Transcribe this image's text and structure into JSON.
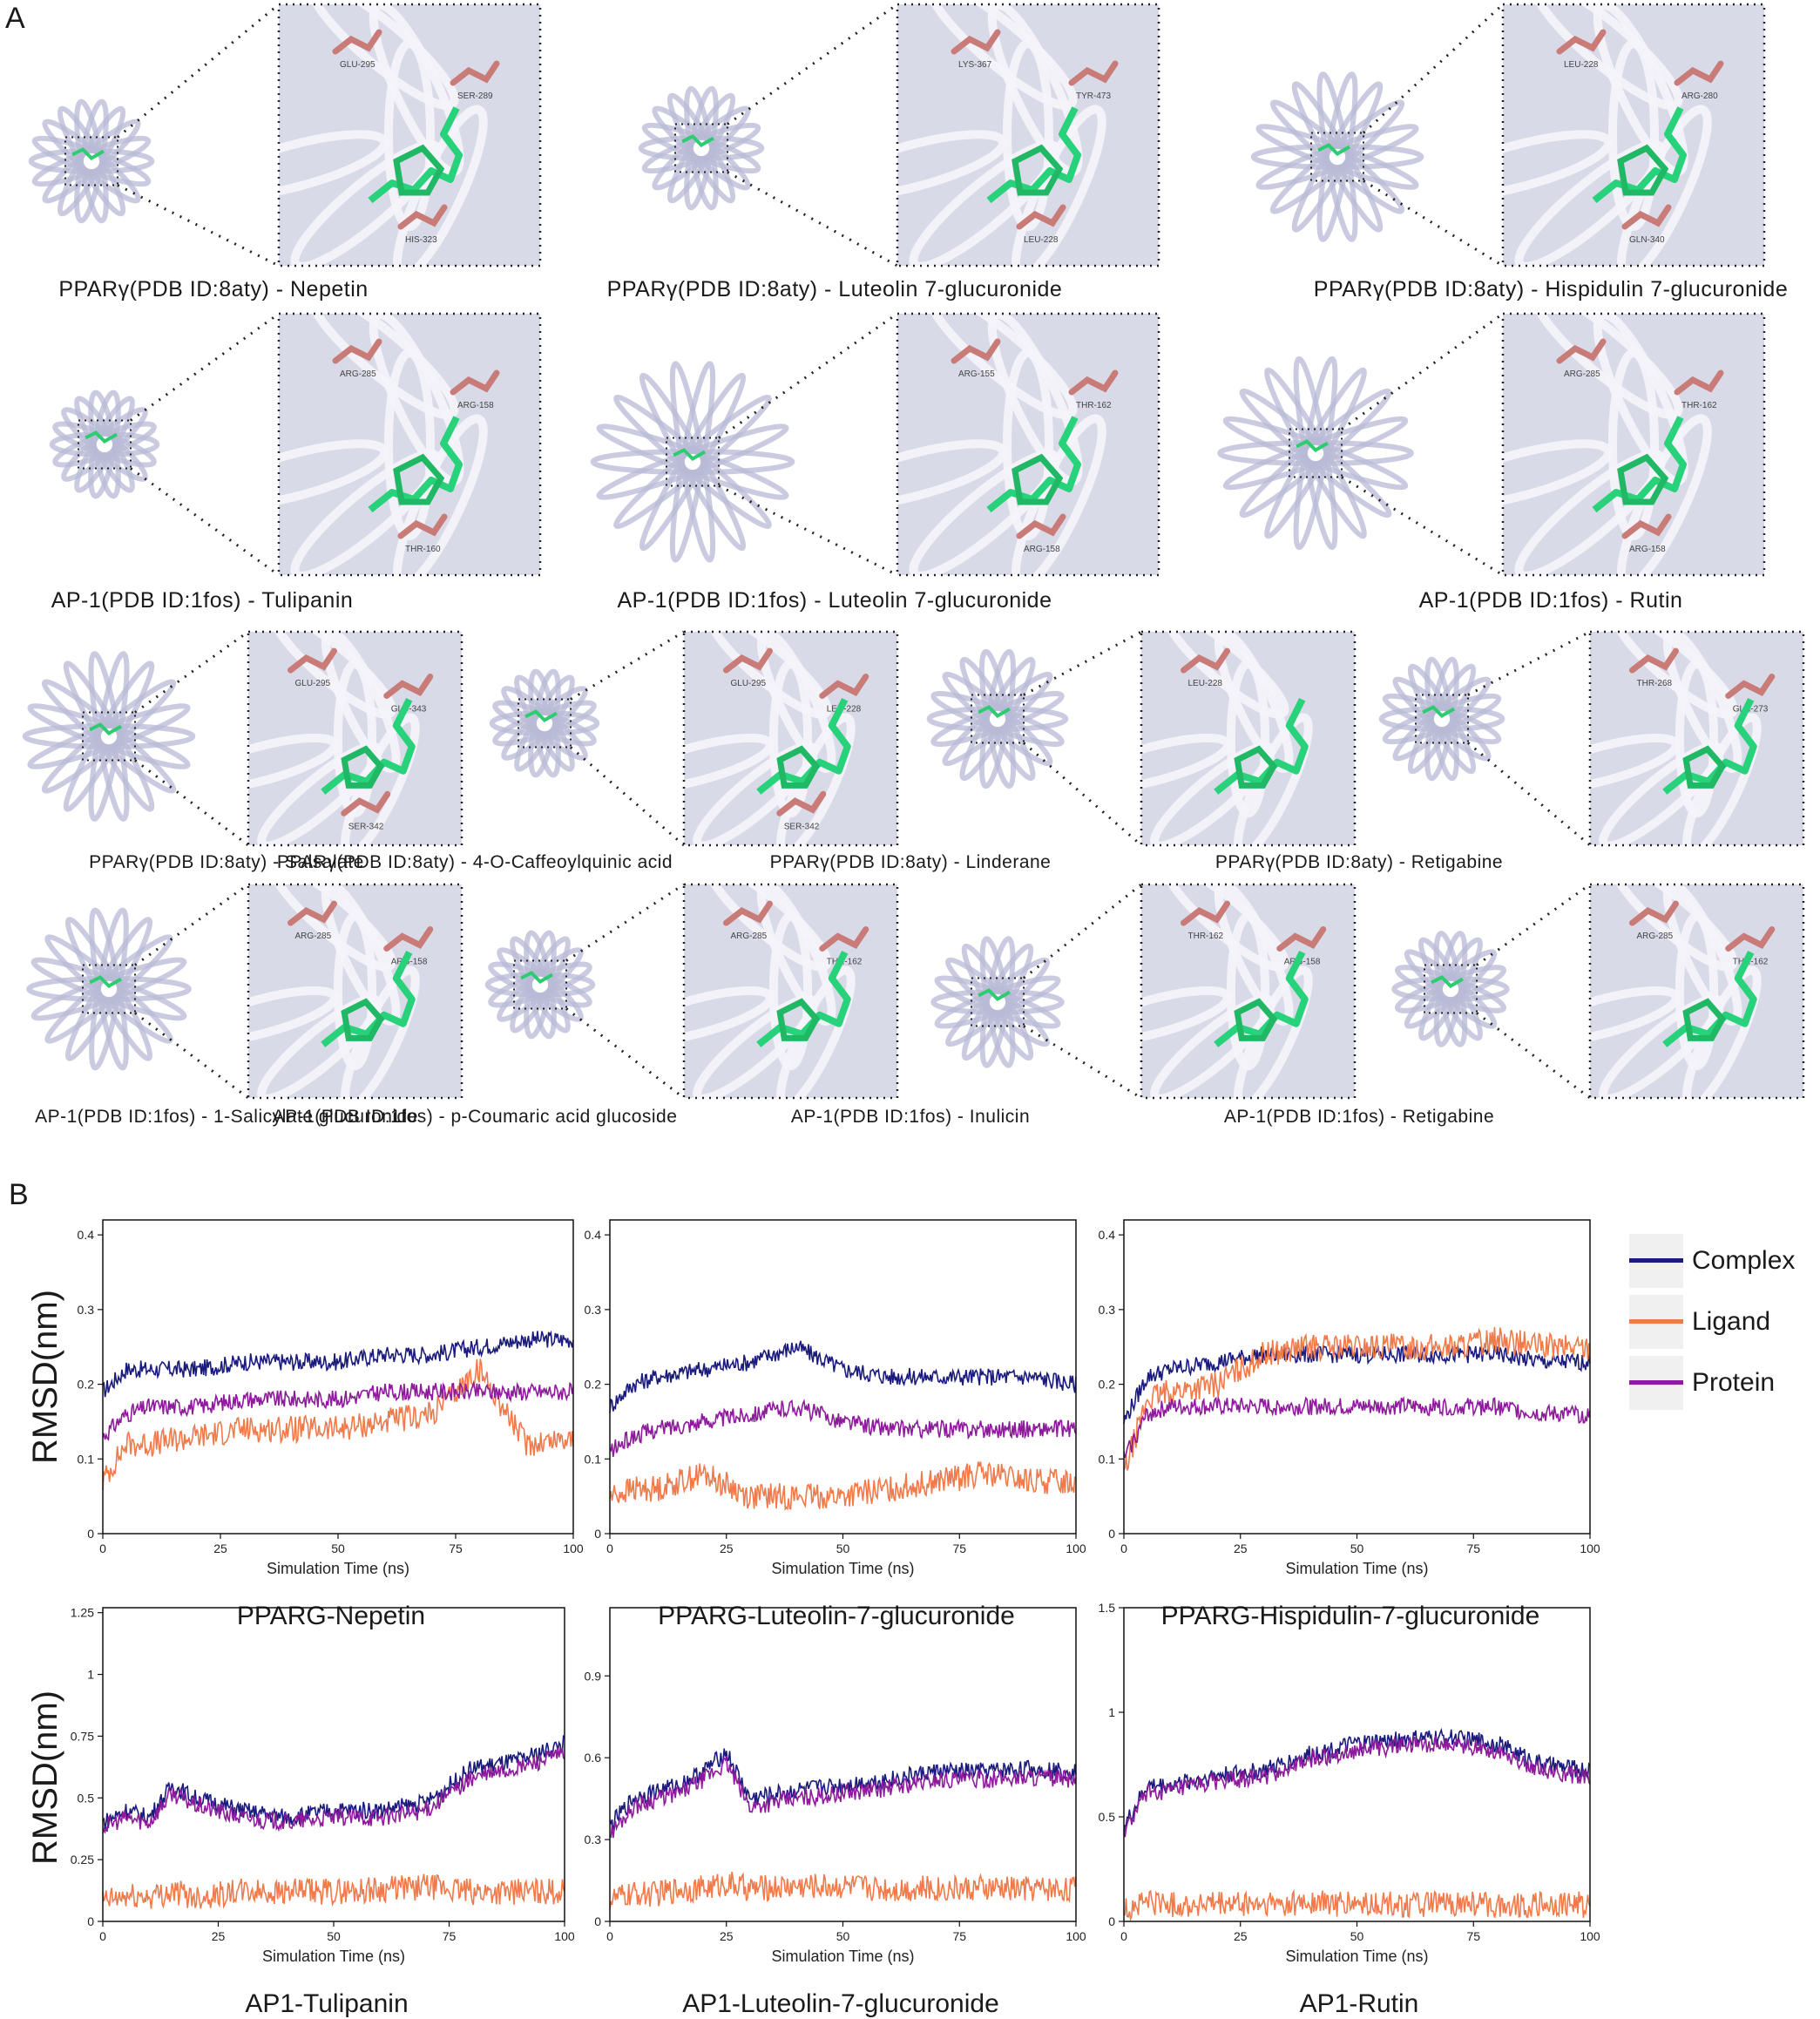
{
  "panelA": {
    "letter": "A",
    "rows": [
      {
        "cells": [
          {
            "caption": "PPARγ(PDB ID:8aty) - Nepetin",
            "residues": [
              "GLU-295",
              "SER-289",
              "HIS-323"
            ]
          },
          {
            "caption": "PPARγ(PDB ID:8aty) - Luteolin 7-glucuronide",
            "residues": [
              "LYS-367",
              "TYR-473",
              "LEU-228"
            ]
          },
          {
            "caption": "PPARγ(PDB ID:8aty) - Hispidulin 7-glucuronide",
            "residues": [
              "LEU-228",
              "ARG-280",
              "GLN-340"
            ]
          }
        ]
      },
      {
        "cells": [
          {
            "caption": "AP-1(PDB ID:1fos) - Tulipanin",
            "residues": [
              "ARG-285",
              "ARG-158",
              "THR-160"
            ]
          },
          {
            "caption": "AP-1(PDB ID:1fos) - Luteolin 7-glucuronide",
            "residues": [
              "ARG-155",
              "THR-162",
              "ARG-158"
            ]
          },
          {
            "caption": "AP-1(PDB ID:1fos) - Rutin",
            "residues": [
              "ARG-285",
              "THR-162",
              "ARG-158"
            ]
          }
        ]
      },
      {
        "cells": [
          {
            "caption": "PPARγ(PDB ID:8aty) - Salsalate",
            "residues": [
              "GLU-295",
              "GLU-343",
              "SER-342"
            ]
          },
          {
            "caption": "PPARγ(PDB ID:8aty) - 4-O-Caffeoylquinic acid",
            "residues": [
              "GLU-295",
              "LEU-228",
              "SER-342"
            ]
          },
          {
            "caption": "PPARγ(PDB ID:8aty) - Linderane",
            "residues": [
              "LEU-228"
            ]
          },
          {
            "caption": "PPARγ(PDB ID:8aty) - Retigabine",
            "residues": [
              "THR-268",
              "GLN-273"
            ]
          }
        ]
      },
      {
        "cells": [
          {
            "caption": "AP-1(PDB ID:1fos) - 1-Salicylate glucuronide",
            "residues": [
              "ARG-285",
              "ARG-158"
            ]
          },
          {
            "caption": "AP-1(PDB ID:1fos) - p-Coumaric acid glucoside",
            "residues": [
              "ARG-285",
              "THR-162"
            ]
          },
          {
            "caption": "AP-1(PDB ID:1fos) - Inulicin",
            "residues": [
              "THR-162",
              "ARG-158"
            ]
          },
          {
            "caption": "AP-1(PDB ID:1fos) - Retigabine",
            "residues": [
              "ARG-285",
              "THR-162"
            ]
          }
        ]
      }
    ]
  },
  "panelB": {
    "letter": "B",
    "ylabel": "RMSD(nm)",
    "legend": [
      {
        "name": "Complex",
        "color": "#1b1b7e"
      },
      {
        "name": "Ligand",
        "color": "#f07a4a"
      },
      {
        "name": "Protein",
        "color": "#8e1a9c"
      }
    ]
  },
  "chart_data": [
    {
      "type": "line",
      "title": "PPARG-Nepetin",
      "xlabel": "Simulation Time (ns)",
      "ylabel": "RMSD(nm)",
      "xlim": [
        0,
        100
      ],
      "ylim": [
        0,
        0.42
      ],
      "xticks": [
        0,
        25,
        50,
        75,
        100
      ],
      "yticks": [
        0,
        0.1,
        0.2,
        0.3,
        0.4
      ],
      "x": [
        0,
        5,
        10,
        20,
        30,
        40,
        50,
        60,
        70,
        80,
        90,
        100
      ],
      "series": [
        {
          "name": "Complex",
          "values": [
            0.19,
            0.22,
            0.22,
            0.22,
            0.23,
            0.23,
            0.23,
            0.24,
            0.24,
            0.25,
            0.26,
            0.26
          ]
        },
        {
          "name": "Ligand",
          "values": [
            0.07,
            0.12,
            0.12,
            0.13,
            0.14,
            0.14,
            0.14,
            0.15,
            0.16,
            0.22,
            0.12,
            0.13
          ]
        },
        {
          "name": "Protein",
          "values": [
            0.13,
            0.16,
            0.17,
            0.17,
            0.18,
            0.18,
            0.18,
            0.19,
            0.19,
            0.19,
            0.19,
            0.19
          ]
        }
      ]
    },
    {
      "type": "line",
      "title": "PPARG-Luteolin-7-glucuronide",
      "xlabel": "Simulation Time (ns)",
      "ylabel": "RMSD(nm)",
      "xlim": [
        0,
        100
      ],
      "ylim": [
        0,
        0.42
      ],
      "xticks": [
        0,
        25,
        50,
        75,
        100
      ],
      "yticks": [
        0,
        0.1,
        0.2,
        0.3,
        0.4
      ],
      "x": [
        0,
        5,
        10,
        20,
        30,
        40,
        50,
        60,
        70,
        80,
        90,
        100
      ],
      "series": [
        {
          "name": "Complex",
          "values": [
            0.17,
            0.2,
            0.21,
            0.22,
            0.23,
            0.25,
            0.22,
            0.21,
            0.21,
            0.21,
            0.21,
            0.2
          ]
        },
        {
          "name": "Ligand",
          "values": [
            0.05,
            0.06,
            0.06,
            0.08,
            0.05,
            0.05,
            0.05,
            0.06,
            0.07,
            0.08,
            0.07,
            0.07
          ]
        },
        {
          "name": "Protein",
          "values": [
            0.11,
            0.13,
            0.14,
            0.15,
            0.16,
            0.17,
            0.15,
            0.14,
            0.14,
            0.14,
            0.14,
            0.14
          ]
        }
      ]
    },
    {
      "type": "line",
      "title": "PPARG-Hispidulin-7-glucuronide",
      "xlabel": "Simulation Time (ns)",
      "ylabel": "RMSD(nm)",
      "xlim": [
        0,
        100
      ],
      "ylim": [
        0,
        0.42
      ],
      "xticks": [
        0,
        25,
        50,
        75,
        100
      ],
      "yticks": [
        0,
        0.1,
        0.2,
        0.3,
        0.4
      ],
      "x": [
        0,
        5,
        10,
        20,
        30,
        40,
        50,
        60,
        70,
        80,
        90,
        100
      ],
      "series": [
        {
          "name": "Complex",
          "values": [
            0.15,
            0.21,
            0.22,
            0.23,
            0.24,
            0.24,
            0.24,
            0.24,
            0.24,
            0.24,
            0.23,
            0.23
          ]
        },
        {
          "name": "Ligand",
          "values": [
            0.08,
            0.18,
            0.19,
            0.2,
            0.24,
            0.25,
            0.25,
            0.25,
            0.25,
            0.26,
            0.25,
            0.25
          ]
        },
        {
          "name": "Protein",
          "values": [
            0.1,
            0.16,
            0.17,
            0.17,
            0.17,
            0.17,
            0.17,
            0.17,
            0.17,
            0.17,
            0.16,
            0.16
          ]
        }
      ]
    },
    {
      "type": "line",
      "title": "AP1-Tulipanin",
      "xlabel": "Simulation Time (ns)",
      "ylabel": "RMSD(nm)",
      "xlim": [
        0,
        100
      ],
      "ylim": [
        0,
        1.27
      ],
      "xticks": [
        0,
        25,
        50,
        75,
        100
      ],
      "yticks": [
        0,
        0.25,
        0.5,
        0.75,
        1,
        1.25
      ],
      "x": [
        0,
        5,
        10,
        15,
        20,
        30,
        40,
        50,
        60,
        70,
        80,
        90,
        100
      ],
      "series": [
        {
          "name": "Complex",
          "values": [
            0.4,
            0.45,
            0.42,
            0.55,
            0.5,
            0.45,
            0.42,
            0.45,
            0.45,
            0.48,
            0.62,
            0.65,
            0.72
          ]
        },
        {
          "name": "Ligand",
          "values": [
            0.08,
            0.1,
            0.1,
            0.12,
            0.1,
            0.12,
            0.12,
            0.12,
            0.13,
            0.14,
            0.12,
            0.12,
            0.12
          ]
        },
        {
          "name": "Protein",
          "values": [
            0.38,
            0.42,
            0.4,
            0.52,
            0.47,
            0.42,
            0.4,
            0.42,
            0.42,
            0.45,
            0.58,
            0.62,
            0.68
          ]
        }
      ]
    },
    {
      "type": "line",
      "title": "AP1-Luteolin-7-glucuronide",
      "xlabel": "Simulation Time (ns)",
      "ylabel": "RMSD(nm)",
      "xlim": [
        0,
        100
      ],
      "ylim": [
        0,
        1.15
      ],
      "xticks": [
        0,
        25,
        50,
        75,
        100
      ],
      "yticks": [
        0,
        0.3,
        0.6,
        0.9
      ],
      "x": [
        0,
        5,
        10,
        15,
        20,
        25,
        30,
        40,
        50,
        60,
        70,
        80,
        90,
        100
      ],
      "series": [
        {
          "name": "Complex",
          "values": [
            0.35,
            0.45,
            0.48,
            0.5,
            0.55,
            0.62,
            0.45,
            0.48,
            0.5,
            0.52,
            0.55,
            0.55,
            0.56,
            0.55
          ]
        },
        {
          "name": "Ligand",
          "values": [
            0.08,
            0.1,
            0.1,
            0.12,
            0.12,
            0.14,
            0.12,
            0.13,
            0.13,
            0.12,
            0.12,
            0.12,
            0.12,
            0.12
          ]
        },
        {
          "name": "Protein",
          "values": [
            0.32,
            0.42,
            0.45,
            0.47,
            0.52,
            0.58,
            0.42,
            0.45,
            0.47,
            0.49,
            0.52,
            0.52,
            0.53,
            0.52
          ]
        }
      ]
    },
    {
      "type": "line",
      "title": "AP1-Rutin",
      "xlabel": "Simulation Time (ns)",
      "ylabel": "RMSD(nm)",
      "xlim": [
        0,
        100
      ],
      "ylim": [
        0,
        1.5
      ],
      "xticks": [
        0,
        25,
        50,
        75,
        100
      ],
      "yticks": [
        0,
        0.5,
        1,
        1.5
      ],
      "x": [
        0,
        5,
        10,
        20,
        30,
        40,
        50,
        60,
        70,
        80,
        90,
        100
      ],
      "series": [
        {
          "name": "Complex",
          "values": [
            0.45,
            0.65,
            0.65,
            0.7,
            0.72,
            0.8,
            0.85,
            0.87,
            0.88,
            0.85,
            0.75,
            0.72
          ]
        },
        {
          "name": "Ligand",
          "values": [
            0.05,
            0.1,
            0.08,
            0.08,
            0.08,
            0.09,
            0.08,
            0.08,
            0.08,
            0.08,
            0.08,
            0.08
          ]
        },
        {
          "name": "Protein",
          "values": [
            0.42,
            0.62,
            0.62,
            0.67,
            0.69,
            0.77,
            0.82,
            0.84,
            0.85,
            0.82,
            0.72,
            0.69
          ]
        }
      ]
    }
  ]
}
